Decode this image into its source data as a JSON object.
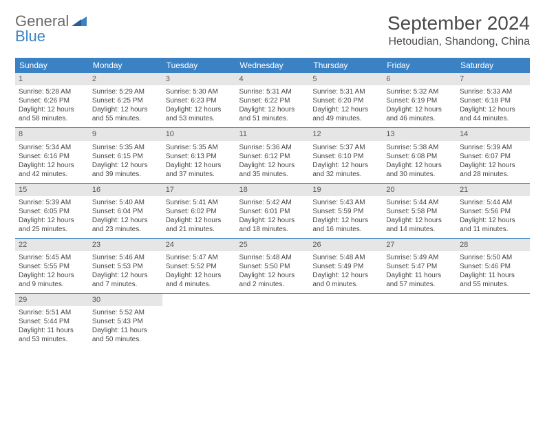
{
  "logo": {
    "general": "General",
    "blue": "Blue"
  },
  "title": "September 2024",
  "location": "Hetoudian, Shandong, China",
  "colors": {
    "header_bg": "#3b82c4",
    "daynum_bg": "#e6e6e6",
    "text": "#444444",
    "title_text": "#4a4a4a",
    "logo_gray": "#6b6b6b",
    "logo_blue": "#3b82c4"
  },
  "day_headers": [
    "Sunday",
    "Monday",
    "Tuesday",
    "Wednesday",
    "Thursday",
    "Friday",
    "Saturday"
  ],
  "weeks": [
    [
      {
        "n": "1",
        "sr": "Sunrise: 5:28 AM",
        "ss": "Sunset: 6:26 PM",
        "d1": "Daylight: 12 hours",
        "d2": "and 58 minutes."
      },
      {
        "n": "2",
        "sr": "Sunrise: 5:29 AM",
        "ss": "Sunset: 6:25 PM",
        "d1": "Daylight: 12 hours",
        "d2": "and 55 minutes."
      },
      {
        "n": "3",
        "sr": "Sunrise: 5:30 AM",
        "ss": "Sunset: 6:23 PM",
        "d1": "Daylight: 12 hours",
        "d2": "and 53 minutes."
      },
      {
        "n": "4",
        "sr": "Sunrise: 5:31 AM",
        "ss": "Sunset: 6:22 PM",
        "d1": "Daylight: 12 hours",
        "d2": "and 51 minutes."
      },
      {
        "n": "5",
        "sr": "Sunrise: 5:31 AM",
        "ss": "Sunset: 6:20 PM",
        "d1": "Daylight: 12 hours",
        "d2": "and 49 minutes."
      },
      {
        "n": "6",
        "sr": "Sunrise: 5:32 AM",
        "ss": "Sunset: 6:19 PM",
        "d1": "Daylight: 12 hours",
        "d2": "and 46 minutes."
      },
      {
        "n": "7",
        "sr": "Sunrise: 5:33 AM",
        "ss": "Sunset: 6:18 PM",
        "d1": "Daylight: 12 hours",
        "d2": "and 44 minutes."
      }
    ],
    [
      {
        "n": "8",
        "sr": "Sunrise: 5:34 AM",
        "ss": "Sunset: 6:16 PM",
        "d1": "Daylight: 12 hours",
        "d2": "and 42 minutes."
      },
      {
        "n": "9",
        "sr": "Sunrise: 5:35 AM",
        "ss": "Sunset: 6:15 PM",
        "d1": "Daylight: 12 hours",
        "d2": "and 39 minutes."
      },
      {
        "n": "10",
        "sr": "Sunrise: 5:35 AM",
        "ss": "Sunset: 6:13 PM",
        "d1": "Daylight: 12 hours",
        "d2": "and 37 minutes."
      },
      {
        "n": "11",
        "sr": "Sunrise: 5:36 AM",
        "ss": "Sunset: 6:12 PM",
        "d1": "Daylight: 12 hours",
        "d2": "and 35 minutes."
      },
      {
        "n": "12",
        "sr": "Sunrise: 5:37 AM",
        "ss": "Sunset: 6:10 PM",
        "d1": "Daylight: 12 hours",
        "d2": "and 32 minutes."
      },
      {
        "n": "13",
        "sr": "Sunrise: 5:38 AM",
        "ss": "Sunset: 6:08 PM",
        "d1": "Daylight: 12 hours",
        "d2": "and 30 minutes."
      },
      {
        "n": "14",
        "sr": "Sunrise: 5:39 AM",
        "ss": "Sunset: 6:07 PM",
        "d1": "Daylight: 12 hours",
        "d2": "and 28 minutes."
      }
    ],
    [
      {
        "n": "15",
        "sr": "Sunrise: 5:39 AM",
        "ss": "Sunset: 6:05 PM",
        "d1": "Daylight: 12 hours",
        "d2": "and 25 minutes."
      },
      {
        "n": "16",
        "sr": "Sunrise: 5:40 AM",
        "ss": "Sunset: 6:04 PM",
        "d1": "Daylight: 12 hours",
        "d2": "and 23 minutes."
      },
      {
        "n": "17",
        "sr": "Sunrise: 5:41 AM",
        "ss": "Sunset: 6:02 PM",
        "d1": "Daylight: 12 hours",
        "d2": "and 21 minutes."
      },
      {
        "n": "18",
        "sr": "Sunrise: 5:42 AM",
        "ss": "Sunset: 6:01 PM",
        "d1": "Daylight: 12 hours",
        "d2": "and 18 minutes."
      },
      {
        "n": "19",
        "sr": "Sunrise: 5:43 AM",
        "ss": "Sunset: 5:59 PM",
        "d1": "Daylight: 12 hours",
        "d2": "and 16 minutes."
      },
      {
        "n": "20",
        "sr": "Sunrise: 5:44 AM",
        "ss": "Sunset: 5:58 PM",
        "d1": "Daylight: 12 hours",
        "d2": "and 14 minutes."
      },
      {
        "n": "21",
        "sr": "Sunrise: 5:44 AM",
        "ss": "Sunset: 5:56 PM",
        "d1": "Daylight: 12 hours",
        "d2": "and 11 minutes."
      }
    ],
    [
      {
        "n": "22",
        "sr": "Sunrise: 5:45 AM",
        "ss": "Sunset: 5:55 PM",
        "d1": "Daylight: 12 hours",
        "d2": "and 9 minutes."
      },
      {
        "n": "23",
        "sr": "Sunrise: 5:46 AM",
        "ss": "Sunset: 5:53 PM",
        "d1": "Daylight: 12 hours",
        "d2": "and 7 minutes."
      },
      {
        "n": "24",
        "sr": "Sunrise: 5:47 AM",
        "ss": "Sunset: 5:52 PM",
        "d1": "Daylight: 12 hours",
        "d2": "and 4 minutes."
      },
      {
        "n": "25",
        "sr": "Sunrise: 5:48 AM",
        "ss": "Sunset: 5:50 PM",
        "d1": "Daylight: 12 hours",
        "d2": "and 2 minutes."
      },
      {
        "n": "26",
        "sr": "Sunrise: 5:48 AM",
        "ss": "Sunset: 5:49 PM",
        "d1": "Daylight: 12 hours",
        "d2": "and 0 minutes."
      },
      {
        "n": "27",
        "sr": "Sunrise: 5:49 AM",
        "ss": "Sunset: 5:47 PM",
        "d1": "Daylight: 11 hours",
        "d2": "and 57 minutes."
      },
      {
        "n": "28",
        "sr": "Sunrise: 5:50 AM",
        "ss": "Sunset: 5:46 PM",
        "d1": "Daylight: 11 hours",
        "d2": "and 55 minutes."
      }
    ],
    [
      {
        "n": "29",
        "sr": "Sunrise: 5:51 AM",
        "ss": "Sunset: 5:44 PM",
        "d1": "Daylight: 11 hours",
        "d2": "and 53 minutes."
      },
      {
        "n": "30",
        "sr": "Sunrise: 5:52 AM",
        "ss": "Sunset: 5:43 PM",
        "d1": "Daylight: 11 hours",
        "d2": "and 50 minutes."
      },
      {
        "empty": true
      },
      {
        "empty": true
      },
      {
        "empty": true
      },
      {
        "empty": true
      },
      {
        "empty": true
      }
    ]
  ]
}
